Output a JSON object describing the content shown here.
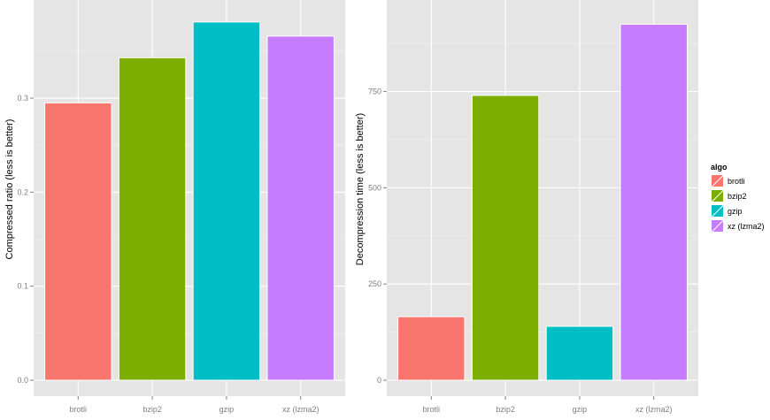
{
  "chart_data": [
    {
      "type": "bar",
      "categories": [
        "brotli",
        "bzip2",
        "gzip",
        "xz (lzma2)"
      ],
      "values": [
        0.295,
        0.343,
        0.381,
        0.366
      ],
      "ylabel": "Compressed ratio (less is better)",
      "xlabel": "",
      "ylim": [
        0,
        0.395
      ],
      "yticks": [
        0.0,
        0.1,
        0.2,
        0.3
      ],
      "ytick_labels": [
        "0.0",
        "0.1",
        "0.2",
        "0.3"
      ],
      "grid": true
    },
    {
      "type": "bar",
      "categories": [
        "brotli",
        "bzip2",
        "gzip",
        "xz (lzma2)"
      ],
      "values": [
        165,
        740,
        140,
        925
      ],
      "ylabel": "Decompression time (less is better)",
      "xlabel": "",
      "ylim": [
        0,
        965
      ],
      "yticks": [
        0,
        250,
        500,
        750
      ],
      "ytick_labels": [
        "0",
        "250",
        "500",
        "750"
      ],
      "grid": true
    }
  ],
  "legend": {
    "title": "algo",
    "position": "right",
    "entries": [
      {
        "label": "brotli",
        "color": "#F8766D"
      },
      {
        "label": "bzip2",
        "color": "#7CAE00"
      },
      {
        "label": "gzip",
        "color": "#00BFC4"
      },
      {
        "label": "xz (lzma2)",
        "color": "#C77CFF"
      }
    ]
  },
  "colors": {
    "panel_bg": "#E5E5E5",
    "grid_major": "#FFFFFF",
    "grid_minor": "#F2F2F2"
  }
}
